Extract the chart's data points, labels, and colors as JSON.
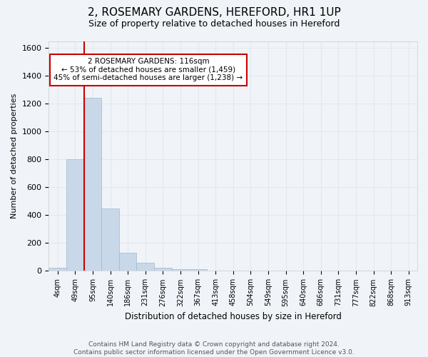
{
  "title": "2, ROSEMARY GARDENS, HEREFORD, HR1 1UP",
  "subtitle": "Size of property relative to detached houses in Hereford",
  "xlabel": "Distribution of detached houses by size in Hereford",
  "ylabel": "Number of detached properties",
  "bar_color": "#c8d8e8",
  "bar_edgecolor": "#a0b8cc",
  "grid_color": "#e0e8f0",
  "background_color": "#f0f4f8",
  "bin_labels": [
    "4sqm",
    "49sqm",
    "95sqm",
    "140sqm",
    "186sqm",
    "231sqm",
    "276sqm",
    "322sqm",
    "367sqm",
    "413sqm",
    "458sqm",
    "504sqm",
    "549sqm",
    "595sqm",
    "640sqm",
    "686sqm",
    "731sqm",
    "777sqm",
    "822sqm",
    "868sqm",
    "913sqm"
  ],
  "bar_values": [
    25,
    800,
    1240,
    450,
    130,
    60,
    25,
    15,
    15,
    0,
    0,
    0,
    0,
    0,
    0,
    0,
    0,
    0,
    0,
    0,
    0
  ],
  "ylim": [
    0,
    1650
  ],
  "yticks": [
    0,
    200,
    400,
    600,
    800,
    1000,
    1200,
    1400,
    1600
  ],
  "vline_bar_index": 2,
  "vline_color": "#cc0000",
  "annotation_text": "2 ROSEMARY GARDENS: 116sqm\n← 53% of detached houses are smaller (1,459)\n45% of semi-detached houses are larger (1,238) →",
  "annotation_box_color": "#ffffff",
  "annotation_box_edgecolor": "#cc0000",
  "footer_text": "Contains HM Land Registry data © Crown copyright and database right 2024.\nContains public sector information licensed under the Open Government Licence v3.0.",
  "figsize": [
    6.0,
    5.0
  ],
  "dpi": 100
}
